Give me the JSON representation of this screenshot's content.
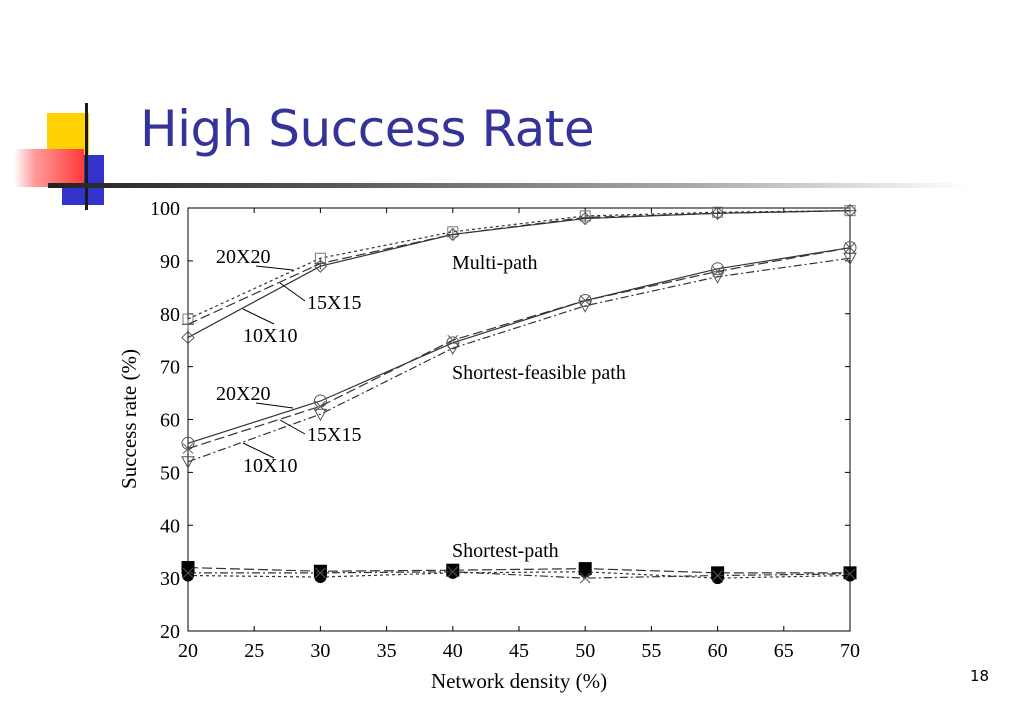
{
  "slide": {
    "title": "High Success Rate",
    "page_number": "18"
  },
  "colors": {
    "title": "#333399",
    "deco_yellow": "#ffd200",
    "deco_blue": "#3333cc",
    "deco_red": "#ff3a3a",
    "series": "#333333"
  },
  "chart_data": {
    "type": "line",
    "title": "",
    "xlabel": "Network density (%)",
    "ylabel": "Success rate (%)",
    "xlim": [
      20,
      70
    ],
    "ylim": [
      20,
      100
    ],
    "xticks": [
      20,
      25,
      30,
      35,
      40,
      45,
      50,
      55,
      60,
      65,
      70
    ],
    "yticks": [
      20,
      30,
      40,
      50,
      60,
      70,
      80,
      90,
      100
    ],
    "grid": false,
    "x": [
      20,
      30,
      40,
      50,
      60,
      70
    ],
    "groups": [
      {
        "label": "Multi-path",
        "series": [
          {
            "name": "20X20",
            "marker": "square",
            "dash": "3,3",
            "values": [
              79,
              90.5,
              95.5,
              98.5,
              99.2,
              99.5
            ]
          },
          {
            "name": "15X15",
            "marker": "plus",
            "dash": "10,4",
            "values": [
              78,
              89.5,
              95,
              98.2,
              99,
              99.5
            ]
          },
          {
            "name": "10X10",
            "marker": "diamond",
            "dash": "",
            "values": [
              75.5,
              89,
              95,
              98,
              99,
              99.5
            ]
          }
        ]
      },
      {
        "label": "Shortest-feasible path",
        "series": [
          {
            "name": "20X20",
            "marker": "circle",
            "dash": "",
            "values": [
              55.5,
              63.5,
              74.5,
              82.5,
              88.5,
              92.5
            ]
          },
          {
            "name": "15X15",
            "marker": "x",
            "dash": "10,4",
            "values": [
              54.5,
              62.5,
              75,
              82.5,
              88,
              92.5
            ]
          },
          {
            "name": "10X10",
            "marker": "tri-down",
            "dash": "8,3,2,3",
            "values": [
              52,
              61,
              73.5,
              81.5,
              87,
              90.5
            ]
          }
        ]
      },
      {
        "label": "Shortest-path",
        "series": [
          {
            "name": "",
            "marker": "filled-square",
            "dash": "10,4",
            "values": [
              32,
              31.3,
              31.5,
              31.8,
              31,
              31
            ]
          },
          {
            "name": "",
            "marker": "filled-circle",
            "dash": "3,3",
            "values": [
              30.5,
              30.2,
              31,
              31.2,
              30,
              30.5
            ]
          },
          {
            "name": "",
            "marker": "x",
            "dash": "8,3,2,3",
            "values": [
              31,
              31,
              31.2,
              30,
              30.5,
              30.8
            ]
          }
        ]
      }
    ],
    "annotations": [
      {
        "text": "20X20",
        "group": 0
      },
      {
        "text": "15X15",
        "group": 0
      },
      {
        "text": "10X10",
        "group": 0
      },
      {
        "text": "20X20",
        "group": 1
      },
      {
        "text": "15X15",
        "group": 1
      },
      {
        "text": "10X10",
        "group": 1
      }
    ]
  }
}
